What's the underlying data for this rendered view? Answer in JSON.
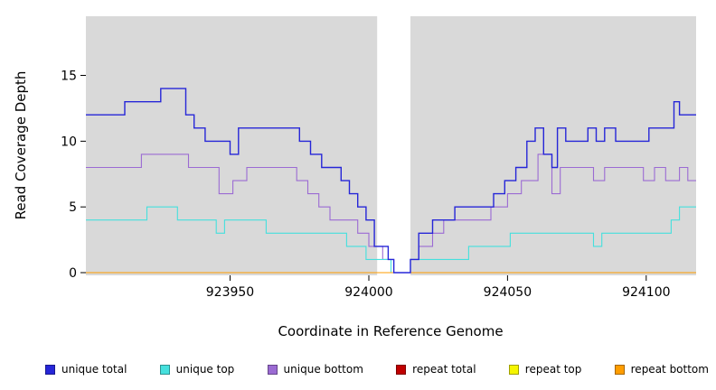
{
  "chart_data": {
    "type": "line",
    "subtype": "step",
    "title": "",
    "xlabel": "Coordinate in Reference Genome",
    "ylabel": "Read Coverage Depth",
    "xlim": [
      923898,
      924118
    ],
    "ylim": [
      0,
      19.5
    ],
    "x_ticks": [
      923950,
      924000,
      924050,
      924100
    ],
    "y_ticks": [
      0,
      5,
      10,
      15
    ],
    "plot_bg": "#d9d9d9",
    "grid": false,
    "legend_position": "bottom",
    "gap_region": {
      "x_start": 924003,
      "x_end": 924015,
      "color": "#ffffff"
    },
    "series": [
      {
        "name": "repeat total",
        "color": "#c00000",
        "points": [
          [
            923898,
            0
          ],
          [
            924118,
            0
          ]
        ]
      },
      {
        "name": "repeat top",
        "color": "#f5f500",
        "points": [
          [
            923898,
            0
          ],
          [
            924118,
            0
          ]
        ]
      },
      {
        "name": "unique bottom",
        "color": "#9b6bd3",
        "points": [
          [
            923898,
            8
          ],
          [
            923918,
            9
          ],
          [
            923935,
            8
          ],
          [
            923946,
            6
          ],
          [
            923951,
            7
          ],
          [
            923956,
            8
          ],
          [
            923974,
            7
          ],
          [
            923978,
            6
          ],
          [
            923982,
            5
          ],
          [
            923986,
            4
          ],
          [
            923996,
            3
          ],
          [
            924000,
            2
          ],
          [
            924005,
            1
          ],
          [
            924009,
            0
          ],
          [
            924015,
            1
          ],
          [
            924018,
            2
          ],
          [
            924023,
            3
          ],
          [
            924027,
            4
          ],
          [
            924044,
            5
          ],
          [
            924050,
            6
          ],
          [
            924055,
            7
          ],
          [
            924061,
            9
          ],
          [
            924066,
            6
          ],
          [
            924069,
            8
          ],
          [
            924081,
            7
          ],
          [
            924085,
            8
          ],
          [
            924099,
            7
          ],
          [
            924103,
            8
          ],
          [
            924107,
            7
          ],
          [
            924112,
            8
          ],
          [
            924115,
            7
          ]
        ]
      },
      {
        "name": "unique top",
        "color": "#45e0dd",
        "points": [
          [
            923898,
            4
          ],
          [
            923920,
            5
          ],
          [
            923931,
            4
          ],
          [
            923945,
            3
          ],
          [
            923948,
            4
          ],
          [
            923963,
            3
          ],
          [
            923992,
            2
          ],
          [
            923999,
            1
          ],
          [
            924008,
            0
          ],
          [
            924015,
            1
          ],
          [
            924036,
            2
          ],
          [
            924051,
            3
          ],
          [
            924081,
            2
          ],
          [
            924084,
            3
          ],
          [
            924105,
            3
          ],
          [
            924109,
            4
          ],
          [
            924112,
            5
          ]
        ]
      },
      {
        "name": "repeat bottom",
        "color": "#ff9d00",
        "points": [
          [
            923898,
            0
          ],
          [
            924118,
            0
          ]
        ]
      },
      {
        "name": "unique total",
        "color": "#2626d8",
        "points": [
          [
            923898,
            12
          ],
          [
            923912,
            13
          ],
          [
            923925,
            14
          ],
          [
            923934,
            12
          ],
          [
            923937,
            11
          ],
          [
            923941,
            10
          ],
          [
            923950,
            9
          ],
          [
            923953,
            11
          ],
          [
            923966,
            11
          ],
          [
            923975,
            10
          ],
          [
            923979,
            9
          ],
          [
            923983,
            8
          ],
          [
            923990,
            7
          ],
          [
            923993,
            6
          ],
          [
            923996,
            5
          ],
          [
            923999,
            4
          ],
          [
            924002,
            2
          ],
          [
            924007,
            1
          ],
          [
            924009,
            0
          ],
          [
            924015,
            1
          ],
          [
            924018,
            3
          ],
          [
            924023,
            4
          ],
          [
            924031,
            5
          ],
          [
            924045,
            6
          ],
          [
            924049,
            7
          ],
          [
            924053,
            8
          ],
          [
            924057,
            10
          ],
          [
            924060,
            11
          ],
          [
            924063,
            9
          ],
          [
            924066,
            8
          ],
          [
            924068,
            11
          ],
          [
            924071,
            10
          ],
          [
            924079,
            11
          ],
          [
            924082,
            10
          ],
          [
            924085,
            11
          ],
          [
            924089,
            10
          ],
          [
            924101,
            11
          ],
          [
            924107,
            11
          ],
          [
            924110,
            13
          ],
          [
            924112,
            12
          ]
        ]
      }
    ],
    "legend": [
      {
        "label": "unique total",
        "color": "#2626d8"
      },
      {
        "label": "unique top",
        "color": "#45e0dd"
      },
      {
        "label": "unique bottom",
        "color": "#9b6bd3"
      },
      {
        "label": "repeat total",
        "color": "#c00000"
      },
      {
        "label": "repeat top",
        "color": "#f5f500"
      },
      {
        "label": "repeat bottom",
        "color": "#ff9d00"
      }
    ]
  }
}
